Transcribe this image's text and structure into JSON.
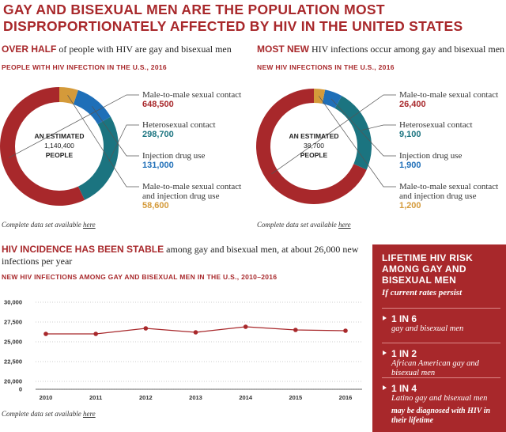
{
  "title": "GAY AND BISEXUAL MEN ARE THE POPULATION MOST DISPROPORTIONATELY AFFECTED BY HIV IN THE UNITED STATES",
  "chart_data": [
    {
      "type": "donut",
      "heading_bold": "OVER HALF",
      "heading": " of people with HIV are gay and bisexual men",
      "subtitle": "PEOPLE WITH HIV INFECTION IN THE U.S., 2016",
      "center": [
        "AN ESTIMATED",
        "1,140,400",
        "PEOPLE"
      ],
      "categories": [
        "Male-to-male sexual contact",
        "Heterosexual contact",
        "Injection drug use",
        "Male-to-male sexual contact and injection drug use"
      ],
      "values": [
        648500,
        298700,
        131000,
        58600
      ],
      "value_labels": [
        "648,500",
        "298,700",
        "131,000",
        "58,600"
      ],
      "colors": [
        "#a8282b",
        "#1b7480",
        "#1f6fb8",
        "#d49a3a"
      ],
      "note": "Complete data set available ",
      "note_link": "here"
    },
    {
      "type": "donut",
      "heading_bold": "MOST NEW",
      "heading": " HIV infections occur among gay and bisexual men",
      "subtitle": "NEW HIV INFECTIONS IN THE U.S., 2016",
      "center": [
        "AN ESTIMATED",
        "38,700",
        "PEOPLE"
      ],
      "categories": [
        "Male-to-male sexual contact",
        "Heterosexual contact",
        "Injection drug use",
        "Male-to-male sexual contact and injection drug use"
      ],
      "values": [
        26400,
        9100,
        1900,
        1200
      ],
      "value_labels": [
        "26,400",
        "9,100",
        "1,900",
        "1,200"
      ],
      "colors": [
        "#a8282b",
        "#1b7480",
        "#1f6fb8",
        "#d49a3a"
      ],
      "note": "Complete data set available ",
      "note_link": "here"
    },
    {
      "type": "line",
      "heading_bold": "HIV INCIDENCE HAS BEEN STABLE",
      "heading": " among gay and bisexual men, at about 26,000 new infections per year",
      "subtitle": "NEW HIV INFECTIONS AMONG GAY AND BISEXUAL MEN IN THE U.S., 2010–2016",
      "categories": [
        "2010",
        "2011",
        "2012",
        "2013",
        "2014",
        "2015",
        "2016"
      ],
      "values": [
        26000,
        26000,
        26700,
        26200,
        26900,
        26500,
        26400
      ],
      "color": "#a8282b",
      "ylim": [
        20000,
        30000
      ],
      "axis_break": true,
      "grid": true,
      "yticks": [
        0,
        {
          "value": 20000,
          "label": "20,000"
        },
        {
          "value": 22500,
          "label": "22,500"
        },
        {
          "value": 25000,
          "label": "25,000"
        },
        {
          "value": 27500,
          "label": "27,500"
        },
        {
          "value": 30000,
          "label": "30,000"
        }
      ],
      "note": "Complete data set available ",
      "note_link": "here"
    }
  ],
  "risk_box": {
    "title": "LIFETIME HIV RISK AMONG GAY AND BISEXUAL MEN",
    "subtitle": "If current rates persist",
    "items": [
      {
        "value": "1 IN 6",
        "label": "gay and bisexual men"
      },
      {
        "value": "1 IN 2",
        "label": "African American gay and bisexual men"
      },
      {
        "value": "1 IN 4",
        "label": "Latino gay and bisexual men"
      }
    ],
    "footer": "may be diagnosed with HIV in their lifetime"
  }
}
